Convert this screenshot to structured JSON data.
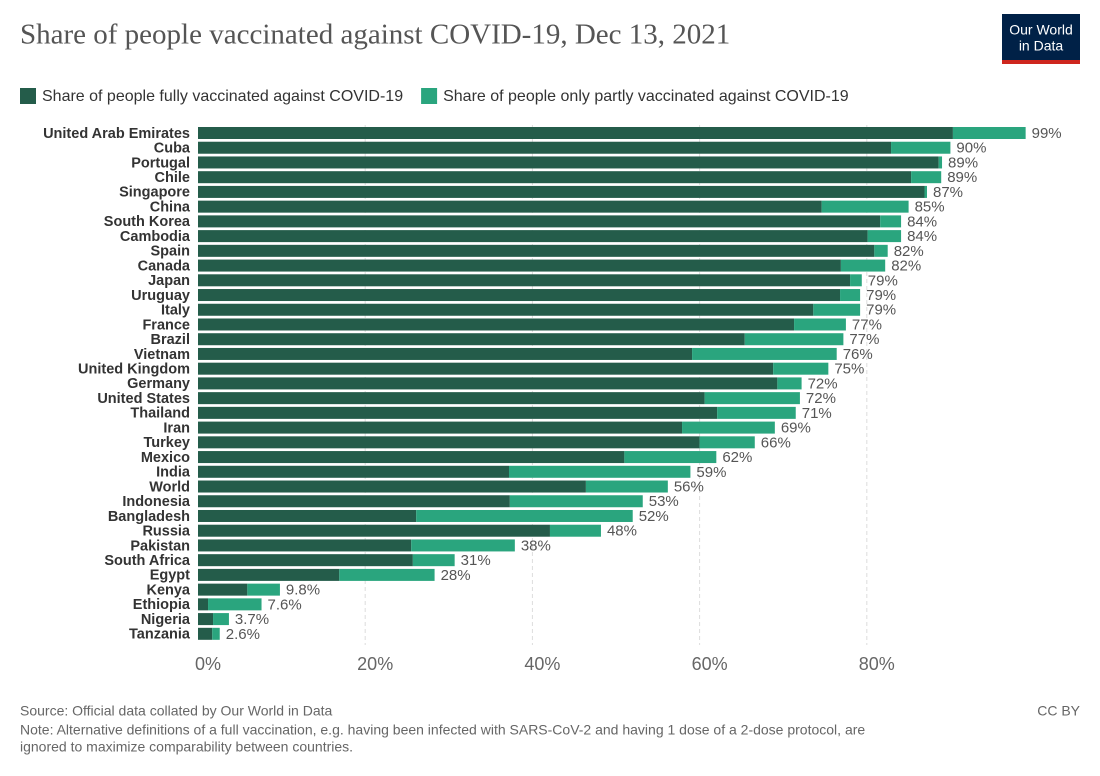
{
  "chart_data": {
    "type": "stacked_barh",
    "title": "Share of people vaccinated against COVID-19, Dec 13, 2021",
    "logo": [
      "Our World",
      "in Data"
    ],
    "source": "Source: Official data collated by Our World in Data",
    "license": "CC BY",
    "note": [
      "Note: Alternative definitions of a full vaccination, e.g. having been infected with SARS-CoV-2 and having 1 dose of a 2-dose protocol, are",
      "ignored to maximize comparability between countries."
    ],
    "categories": [
      "United Arab Emirates",
      "Cuba",
      "Portugal",
      "Chile",
      "Singapore",
      "China",
      "South Korea",
      "Cambodia",
      "Spain",
      "Canada",
      "Japan",
      "Uruguay",
      "Italy",
      "France",
      "Brazil",
      "Vietnam",
      "United Kingdom",
      "Germany",
      "United States",
      "Thailand",
      "Iran",
      "Turkey",
      "Mexico",
      "India",
      "World",
      "Indonesia",
      "Bangladesh",
      "Russia",
      "Pakistan",
      "South Africa",
      "Egypt",
      "Kenya",
      "Ethiopia",
      "Nigeria",
      "Tanzania"
    ],
    "series": [
      {
        "name": "Share of people fully vaccinated against COVID-19",
        "color": "#245c4a",
        "values": [
          90.3,
          82.9,
          88.6,
          85.3,
          86.9,
          74.6,
          81.6,
          80.1,
          80.9,
          76.9,
          78.0,
          76.8,
          73.6,
          71.3,
          65.4,
          59.1,
          68.8,
          69.3,
          60.6,
          62.1,
          57.9,
          60.0,
          51.0,
          37.2,
          46.4,
          37.3,
          26.1,
          42.1,
          25.5,
          25.7,
          16.9,
          5.9,
          1.2,
          1.8,
          1.7
        ]
      },
      {
        "name": "Share of people only partly vaccinated against COVID-19",
        "color": "#2aa57e",
        "values": [
          8.7,
          7.1,
          0.4,
          3.6,
          0.3,
          10.4,
          2.5,
          4.0,
          1.6,
          5.3,
          1.4,
          2.4,
          5.6,
          6.2,
          11.8,
          17.3,
          6.6,
          2.9,
          11.4,
          9.4,
          11.1,
          6.6,
          11.0,
          21.7,
          9.8,
          15.9,
          25.9,
          6.1,
          12.4,
          5.0,
          11.4,
          3.9,
          6.4,
          1.9,
          0.9
        ]
      }
    ],
    "total_labels": [
      "99%",
      "90%",
      "89%",
      "89%",
      "87%",
      "85%",
      "84%",
      "84%",
      "82%",
      "82%",
      "79%",
      "79%",
      "79%",
      "77%",
      "77%",
      "76%",
      "75%",
      "72%",
      "72%",
      "71%",
      "69%",
      "66%",
      "62%",
      "59%",
      "56%",
      "53%",
      "52%",
      "48%",
      "38%",
      "31%",
      "28%",
      "9.8%",
      "7.6%",
      "3.7%",
      "2.6%"
    ],
    "xlim": [
      0,
      100
    ],
    "xticks": [
      {
        "value": 0,
        "label": "0%"
      },
      {
        "value": 20,
        "label": "20%"
      },
      {
        "value": 40,
        "label": "40%"
      },
      {
        "value": 60,
        "label": "60%"
      },
      {
        "value": 80,
        "label": "80%"
      }
    ],
    "grid": true
  }
}
